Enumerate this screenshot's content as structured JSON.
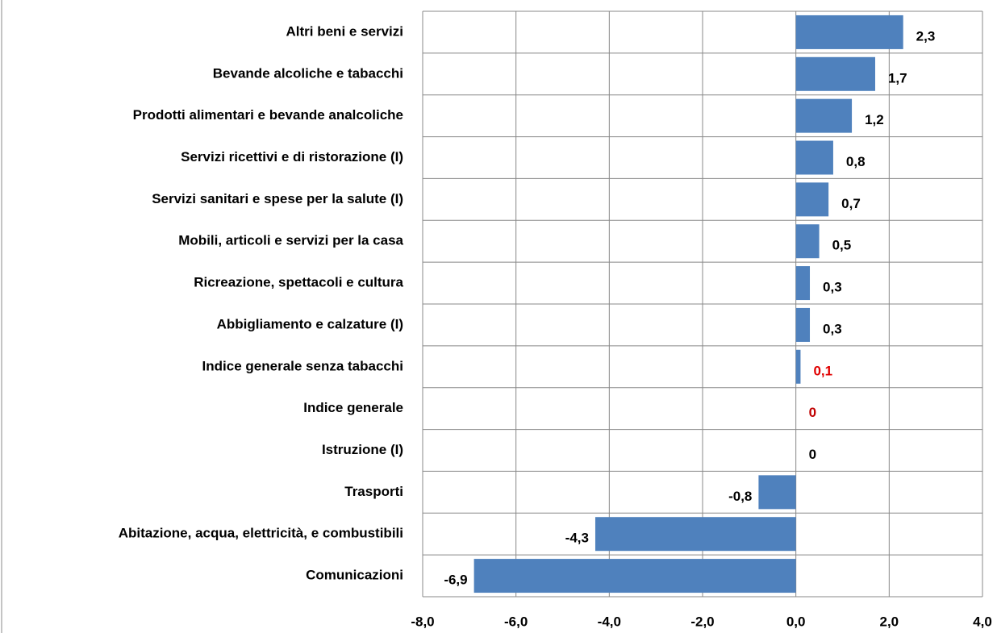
{
  "chart_data": {
    "type": "bar",
    "orientation": "horizontal",
    "categories": [
      "Altri beni e servizi",
      "Bevande alcoliche e tabacchi",
      "Prodotti alimentari e bevande analcoliche",
      "Servizi ricettivi e di ristorazione (I)",
      "Servizi sanitari e spese per la salute (I)",
      "Mobili, articoli e servizi per la casa",
      "Ricreazione, spettacoli e cultura",
      "Abbigliamento e calzature (I)",
      "Indice generale senza tabacchi",
      "Indice generale",
      "Istruzione (I)",
      "Trasporti",
      "Abitazione, acqua, elettricità, e combustibili",
      "Comunicazioni"
    ],
    "values": [
      2.3,
      1.7,
      1.2,
      0.8,
      0.7,
      0.5,
      0.3,
      0.3,
      0.1,
      0,
      0,
      -0.8,
      -4.3,
      -6.9
    ],
    "value_labels": [
      "2,3",
      "1,7",
      "1,2",
      "0,8",
      "0,7",
      "0,5",
      "0,3",
      "0,3",
      "0,1",
      "0",
      "0",
      "-0,8",
      "-4,3",
      "-6,9"
    ],
    "label_colors": [
      "#000000",
      "#000000",
      "#000000",
      "#000000",
      "#000000",
      "#000000",
      "#000000",
      "#000000",
      "#e00000",
      "#c00000",
      "#000000",
      "#000000",
      "#000000",
      "#000000"
    ],
    "color": "#4f81bd",
    "xlim": [
      -8,
      4
    ],
    "xticks": [
      {
        "value": -8,
        "label": "-8,0"
      },
      {
        "value": -6,
        "label": "-6,0"
      },
      {
        "value": -4,
        "label": "-4,0"
      },
      {
        "value": -2,
        "label": "-2,0"
      },
      {
        "value": 0,
        "label": "0,0"
      },
      {
        "value": 2,
        "label": "2,0"
      },
      {
        "value": 4,
        "label": "4,0"
      }
    ],
    "grid": true
  }
}
